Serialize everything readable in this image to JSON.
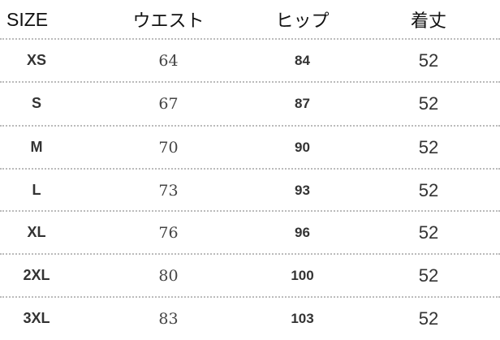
{
  "table": {
    "headers": [
      "SIZE",
      "ウエスト",
      "ヒップ",
      "着丈"
    ],
    "rows": [
      [
        "XS",
        "64",
        "84",
        "52"
      ],
      [
        "S",
        "67",
        "87",
        "52"
      ],
      [
        "M",
        "70",
        "90",
        "52"
      ],
      [
        "L",
        "73",
        "93",
        "52"
      ],
      [
        "XL",
        "76",
        "96",
        "52"
      ],
      [
        "2XL",
        "80",
        "100",
        "52"
      ],
      [
        "3XL",
        "83",
        "103",
        "52"
      ]
    ]
  }
}
